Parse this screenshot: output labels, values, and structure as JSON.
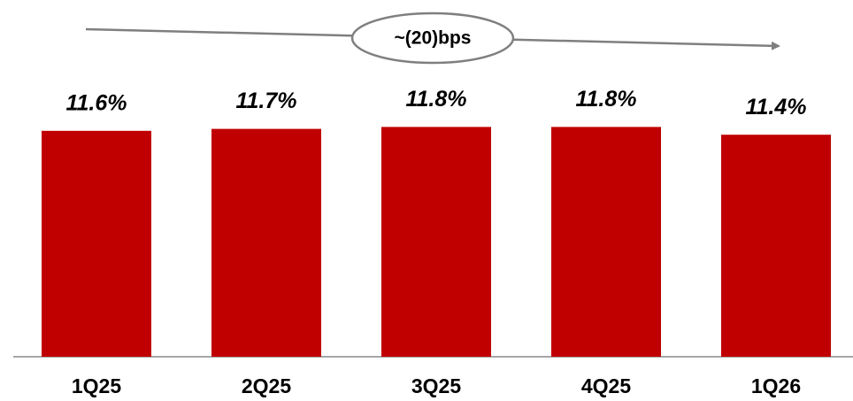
{
  "chart_data": {
    "type": "bar",
    "annotation": "~(20)bps",
    "categories": [
      "1Q25",
      "2Q25",
      "3Q25",
      "4Q25",
      "1Q26"
    ],
    "values": [
      11.6,
      11.7,
      11.8,
      11.8,
      11.4
    ],
    "value_labels": [
      "11.6%",
      "11.7%",
      "11.8%",
      "11.8%",
      "11.4%"
    ],
    "color": "#c00000"
  }
}
